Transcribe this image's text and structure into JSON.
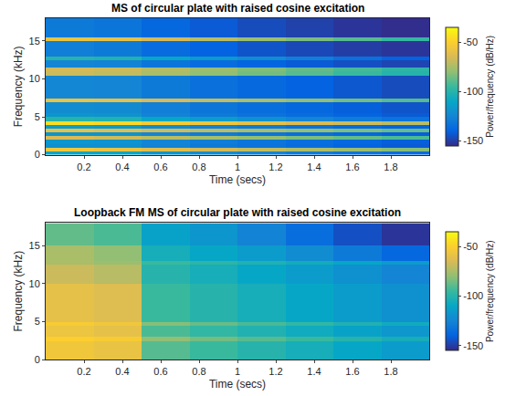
{
  "chart_data": [
    {
      "type": "heatmap",
      "title": "MS of circular plate with raised cosine excitation",
      "x_label": "Time (secs)",
      "y_label": "Frequency (kHz)",
      "x": [
        0.125,
        0.375,
        0.625,
        0.875,
        1.125,
        1.375,
        1.625,
        1.875
      ],
      "y": [
        0.25,
        0.75,
        1.25,
        1.75,
        2.25,
        2.75,
        3.25,
        3.75,
        4.25,
        4.75,
        5.25,
        5.75,
        6.25,
        6.75,
        7.25,
        7.75,
        8.25,
        8.75,
        9.25,
        9.75,
        10.25,
        10.75,
        11.25,
        11.75,
        12.25,
        12.75,
        13.25,
        13.75,
        14.25,
        14.75,
        15.25,
        15.75,
        16.25,
        16.75,
        17.25,
        17.75
      ],
      "z": [
        [
          -110,
          -110,
          -118,
          -122,
          -126,
          -130,
          -133,
          -136
        ],
        [
          -55,
          -58,
          -62,
          -66,
          -70,
          -74,
          -78,
          -82
        ],
        [
          -120,
          -120,
          -126,
          -130,
          -133,
          -136,
          -139,
          -142
        ],
        [
          -118,
          -119,
          -125,
          -129,
          -132,
          -135,
          -138,
          -141
        ],
        [
          -65,
          -68,
          -72,
          -76,
          -80,
          -84,
          -88,
          -92
        ],
        [
          -118,
          -119,
          -125,
          -129,
          -132,
          -135,
          -138,
          -141
        ],
        [
          -60,
          -63,
          -67,
          -71,
          -75,
          -79,
          -83,
          -87
        ],
        [
          -115,
          -116,
          -123,
          -127,
          -130,
          -134,
          -137,
          -140
        ],
        [
          -45,
          -47,
          -52,
          -56,
          -60,
          -64,
          -68,
          -72
        ],
        [
          -100,
          -102,
          -110,
          -115,
          -120,
          -125,
          -129,
          -133
        ],
        [
          -118,
          -119,
          -126,
          -130,
          -133,
          -136,
          -139,
          -142
        ],
        [
          -122,
          -123,
          -128,
          -132,
          -135,
          -138,
          -141,
          -144
        ],
        [
          -122,
          -123,
          -128,
          -132,
          -135,
          -138,
          -141,
          -144
        ],
        [
          -122,
          -123,
          -128,
          -132,
          -135,
          -138,
          -141,
          -144
        ],
        [
          -58,
          -60,
          -65,
          -70,
          -75,
          -80,
          -85,
          -90
        ],
        [
          -124,
          -125,
          -130,
          -134,
          -137,
          -140,
          -143,
          -146
        ],
        [
          -124,
          -125,
          -130,
          -134,
          -137,
          -140,
          -143,
          -146
        ],
        [
          -124,
          -125,
          -130,
          -134,
          -137,
          -140,
          -143,
          -146
        ],
        [
          -124,
          -125,
          -130,
          -134,
          -137,
          -140,
          -143,
          -146
        ],
        [
          -124,
          -125,
          -130,
          -134,
          -137,
          -140,
          -143,
          -146
        ],
        [
          -124,
          -125,
          -130,
          -134,
          -137,
          -140,
          -143,
          -146
        ],
        [
          -68,
          -70,
          -75,
          -80,
          -85,
          -90,
          -95,
          -100
        ],
        [
          -66,
          -68,
          -73,
          -78,
          -83,
          -88,
          -93,
          -98
        ],
        [
          -125,
          -126,
          -132,
          -136,
          -139,
          -142,
          -145,
          -148
        ],
        [
          -125,
          -126,
          -132,
          -136,
          -139,
          -142,
          -145,
          -148
        ],
        [
          -100,
          -102,
          -110,
          -116,
          -122,
          -128,
          -134,
          -140
        ],
        [
          -128,
          -130,
          -136,
          -140,
          -144,
          -147,
          -150,
          -152
        ],
        [
          -128,
          -130,
          -136,
          -140,
          -144,
          -147,
          -150,
          -152
        ],
        [
          -128,
          -130,
          -136,
          -140,
          -144,
          -147,
          -150,
          -152
        ],
        [
          -128,
          -130,
          -136,
          -140,
          -144,
          -147,
          -150,
          -152
        ],
        [
          -58,
          -60,
          -66,
          -72,
          -78,
          -84,
          -90,
          -96
        ],
        [
          -130,
          -132,
          -138,
          -142,
          -146,
          -149,
          -152,
          -154
        ],
        [
          -130,
          -132,
          -138,
          -142,
          -146,
          -149,
          -152,
          -154
        ],
        [
          -130,
          -132,
          -138,
          -142,
          -146,
          -149,
          -152,
          -154
        ],
        [
          -130,
          -132,
          -138,
          -142,
          -146,
          -149,
          -152,
          -154
        ],
        [
          -130,
          -132,
          -138,
          -142,
          -146,
          -149,
          -152,
          -154
        ]
      ],
      "xlim": [
        0,
        2
      ],
      "ylim": [
        0,
        18
      ],
      "xticks": [
        0.2,
        0.4,
        0.6,
        0.8,
        1,
        1.2,
        1.4,
        1.6,
        1.8
      ],
      "yticks": [
        0,
        5,
        10,
        15
      ],
      "colorbar": {
        "title": "Power/frequency (dB/Hz)",
        "range": [
          -155,
          -35
        ],
        "ticks": [
          -150,
          -100,
          -50
        ]
      }
    },
    {
      "type": "heatmap",
      "title": "Loopback FM MS of circular plate with raised cosine excitation",
      "x_label": "Time (secs)",
      "y_label": "Frequency (kHz)",
      "x": [
        0.125,
        0.375,
        0.625,
        0.875,
        1.125,
        1.375,
        1.625,
        1.875
      ],
      "y": [
        0.25,
        0.75,
        1.25,
        1.75,
        2.25,
        2.75,
        3.25,
        3.75,
        4.25,
        4.75,
        5.25,
        5.75,
        6.25,
        6.75,
        7.25,
        7.75,
        8.25,
        8.75,
        9.25,
        9.75,
        10.25,
        10.75,
        11.25,
        11.75,
        12.25,
        12.75,
        13.25,
        13.75,
        14.25,
        14.75,
        15.25,
        15.75,
        16.25,
        16.75,
        17.25,
        17.75
      ],
      "z": [
        [
          -55,
          -58,
          -90,
          -95,
          -100,
          -105,
          -110,
          -115
        ],
        [
          -55,
          -58,
          -90,
          -95,
          -100,
          -105,
          -110,
          -115
        ],
        [
          -55,
          -58,
          -90,
          -95,
          -100,
          -105,
          -110,
          -115
        ],
        [
          -55,
          -58,
          -90,
          -95,
          -100,
          -105,
          -110,
          -115
        ],
        [
          -55,
          -58,
          -90,
          -95,
          -100,
          -105,
          -110,
          -115
        ],
        [
          -50,
          -52,
          -80,
          -85,
          -90,
          -95,
          -100,
          -105
        ],
        [
          -57,
          -60,
          -92,
          -97,
          -102,
          -107,
          -112,
          -117
        ],
        [
          -57,
          -60,
          -92,
          -97,
          -102,
          -107,
          -112,
          -117
        ],
        [
          -57,
          -60,
          -92,
          -97,
          -102,
          -107,
          -112,
          -117
        ],
        [
          -52,
          -55,
          -82,
          -87,
          -92,
          -97,
          -102,
          -107
        ],
        [
          -60,
          -63,
          -95,
          -100,
          -105,
          -110,
          -115,
          -120
        ],
        [
          -60,
          -63,
          -95,
          -100,
          -105,
          -110,
          -115,
          -120
        ],
        [
          -60,
          -63,
          -95,
          -100,
          -105,
          -110,
          -115,
          -120
        ],
        [
          -60,
          -63,
          -95,
          -100,
          -105,
          -110,
          -115,
          -120
        ],
        [
          -60,
          -63,
          -95,
          -100,
          -105,
          -110,
          -115,
          -120
        ],
        [
          -60,
          -63,
          -95,
          -100,
          -105,
          -110,
          -115,
          -120
        ],
        [
          -60,
          -63,
          -95,
          -100,
          -105,
          -110,
          -115,
          -120
        ],
        [
          -60,
          -63,
          -95,
          -100,
          -105,
          -110,
          -115,
          -120
        ],
        [
          -60,
          -63,
          -95,
          -100,
          -105,
          -110,
          -115,
          -120
        ],
        [
          -60,
          -63,
          -95,
          -100,
          -105,
          -110,
          -115,
          -120
        ],
        [
          -68,
          -72,
          -100,
          -105,
          -110,
          -115,
          -120,
          -125
        ],
        [
          -68,
          -72,
          -100,
          -105,
          -110,
          -115,
          -120,
          -125
        ],
        [
          -68,
          -72,
          -100,
          -105,
          -110,
          -115,
          -120,
          -125
        ],
        [
          -68,
          -72,
          -100,
          -105,
          -110,
          -115,
          -120,
          -125
        ],
        [
          -68,
          -72,
          -100,
          -105,
          -110,
          -115,
          -120,
          -125
        ],
        [
          -75,
          -78,
          -95,
          -98,
          -102,
          -106,
          -110,
          -115
        ],
        [
          -75,
          -80,
          -105,
          -110,
          -115,
          -122,
          -130,
          -138
        ],
        [
          -75,
          -80,
          -105,
          -110,
          -115,
          -122,
          -130,
          -138
        ],
        [
          -75,
          -80,
          -105,
          -110,
          -115,
          -122,
          -130,
          -138
        ],
        [
          -75,
          -80,
          -105,
          -110,
          -115,
          -122,
          -130,
          -138
        ],
        [
          -88,
          -92,
          -112,
          -118,
          -126,
          -135,
          -145,
          -152
        ],
        [
          -88,
          -92,
          -112,
          -118,
          -126,
          -135,
          -145,
          -152
        ],
        [
          -88,
          -92,
          -112,
          -118,
          -126,
          -135,
          -145,
          -152
        ],
        [
          -88,
          -92,
          -112,
          -118,
          -126,
          -135,
          -145,
          -152
        ],
        [
          -88,
          -92,
          -112,
          -118,
          -126,
          -135,
          -145,
          -152
        ],
        [
          -88,
          -92,
          -112,
          -118,
          -126,
          -135,
          -145,
          -152
        ]
      ],
      "xlim": [
        0,
        2
      ],
      "ylim": [
        0,
        18
      ],
      "xticks": [
        0.2,
        0.4,
        0.6,
        0.8,
        1,
        1.2,
        1.4,
        1.6,
        1.8
      ],
      "yticks": [
        0,
        5,
        10,
        15
      ],
      "colorbar": {
        "title": "Power/frequency (dB/Hz)",
        "range": [
          -155,
          -35
        ],
        "ticks": [
          -150,
          -100,
          -50
        ]
      }
    }
  ]
}
